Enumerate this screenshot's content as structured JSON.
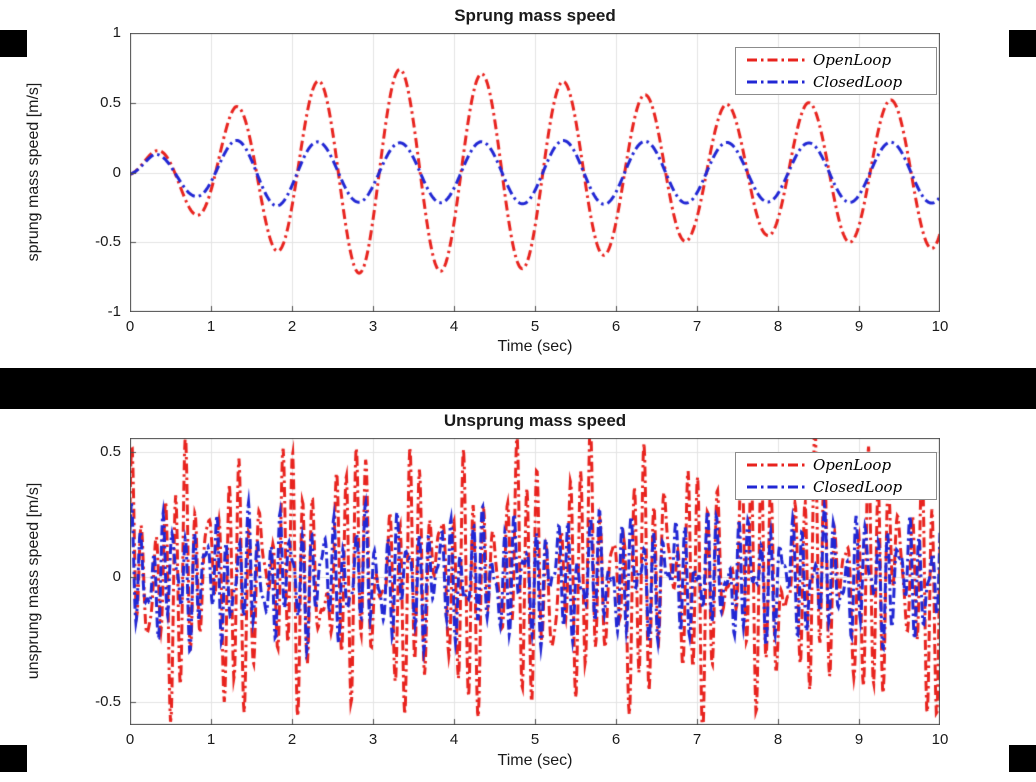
{
  "figure": {
    "background_color": "#ffffff",
    "separator_band_color": "#000000",
    "axis_color": "#4a4a4a",
    "grid_color": "#e3e3e3"
  },
  "chart_data": [
    {
      "type": "line",
      "title": "Sprung mass speed",
      "xlabel": "Time (sec)",
      "ylabel": "sprung mass speed [m/s]",
      "xlim": [
        0,
        10
      ],
      "ylim": [
        -1,
        1
      ],
      "xticks": [
        0,
        1,
        2,
        3,
        4,
        5,
        6,
        7,
        8,
        9,
        10
      ],
      "xtick_labels": [
        "0",
        "1",
        "2",
        "3",
        "4",
        "5",
        "6",
        "7",
        "8",
        "9",
        "10"
      ],
      "yticks": [
        1,
        0.5,
        0,
        -0.5,
        -1
      ],
      "ytick_labels": [
        "1",
        "0.5",
        "0",
        "-0.5",
        "-1"
      ],
      "grid": true,
      "legend": {
        "position": "top-right",
        "entries": [
          {
            "label": "OpenLoop",
            "color": "#e8231e",
            "linestyle": "dash-dot"
          },
          {
            "label": "ClosedLoop",
            "color": "#2127d4",
            "linestyle": "dash-dot"
          }
        ]
      },
      "series": [
        {
          "name": "OpenLoop",
          "color": "#e8231e",
          "linestyle": "dash-dot",
          "linewidth": 3,
          "signal": {
            "kind": "enveloped-sine",
            "freq_hz": 0.99,
            "phase_shift_s": 0.047,
            "envelope_t_amp": [
              [
                0,
                0.05
              ],
              [
                0.3,
                0.15
              ],
              [
                0.8,
                0.3
              ],
              [
                1.3,
                0.47
              ],
              [
                1.85,
                0.57
              ],
              [
                2.4,
                0.67
              ],
              [
                2.9,
                0.73
              ],
              [
                3.4,
                0.74
              ],
              [
                3.95,
                0.7
              ],
              [
                4.5,
                0.71
              ],
              [
                5.0,
                0.68
              ],
              [
                5.5,
                0.64
              ],
              [
                5.95,
                0.58
              ],
              [
                6.5,
                0.55
              ],
              [
                6.95,
                0.48
              ],
              [
                7.35,
                0.49
              ],
              [
                7.85,
                0.45
              ],
              [
                8.35,
                0.5
              ],
              [
                8.9,
                0.5
              ],
              [
                9.4,
                0.52
              ],
              [
                10,
                0.55
              ]
            ]
          }
        },
        {
          "name": "ClosedLoop",
          "color": "#2127d4",
          "linestyle": "dash-dot",
          "linewidth": 3,
          "signal": {
            "kind": "enveloped-sine",
            "freq_hz": 0.99,
            "phase_shift_s": 0.047,
            "envelope_t_amp": [
              [
                0,
                0.04
              ],
              [
                0.3,
                0.13
              ],
              [
                0.8,
                0.17
              ],
              [
                1.3,
                0.23
              ],
              [
                1.8,
                0.24
              ],
              [
                2.3,
                0.22
              ],
              [
                3.0,
                0.21
              ],
              [
                5.5,
                0.23
              ],
              [
                8.0,
                0.21
              ],
              [
                10,
                0.22
              ]
            ]
          }
        }
      ]
    },
    {
      "type": "line",
      "title": "Unsprung mass speed",
      "xlabel": "Time (sec)",
      "ylabel": "unsprung mass speed [m/s]",
      "xlim": [
        0,
        10
      ],
      "ylim": [
        -0.59,
        0.556
      ],
      "xticks": [
        0,
        1,
        2,
        3,
        4,
        5,
        6,
        7,
        8,
        9,
        10
      ],
      "xtick_labels": [
        "0",
        "1",
        "2",
        "3",
        "4",
        "5",
        "6",
        "7",
        "8",
        "9",
        "10"
      ],
      "yticks": [
        0.5,
        0,
        -0.5
      ],
      "ytick_labels": [
        "0.5",
        "0",
        "-0.5"
      ],
      "grid": true,
      "legend": {
        "position": "top-right",
        "entries": [
          {
            "label": "OpenLoop",
            "color": "#e8231e",
            "linestyle": "dash-dot"
          },
          {
            "label": "ClosedLoop",
            "color": "#2127d4",
            "linestyle": "dash-dot"
          }
        ]
      },
      "series": [
        {
          "name": "OpenLoop",
          "color": "#e8231e",
          "linestyle": "dash-dot",
          "linewidth": 3,
          "signal": {
            "kind": "sum-of-sines",
            "components_freq_amp_phase": [
              [
                7.6,
                0.26,
                0
              ],
              [
                9.0,
                0.2,
                1.0
              ],
              [
                3.2,
                0.12,
                0.4
              ],
              [
                1.05,
                0.07,
                2.0
              ]
            ]
          }
        },
        {
          "name": "ClosedLoop",
          "color": "#2127d4",
          "linestyle": "dash-dot",
          "linewidth": 3,
          "signal": {
            "kind": "sum-of-sines",
            "components_freq_amp_phase": [
              [
                7.6,
                0.14,
                0.9
              ],
              [
                10.4,
                0.1,
                0.2
              ],
              [
                2.1,
                0.06,
                1.2
              ]
            ]
          }
        }
      ]
    }
  ]
}
